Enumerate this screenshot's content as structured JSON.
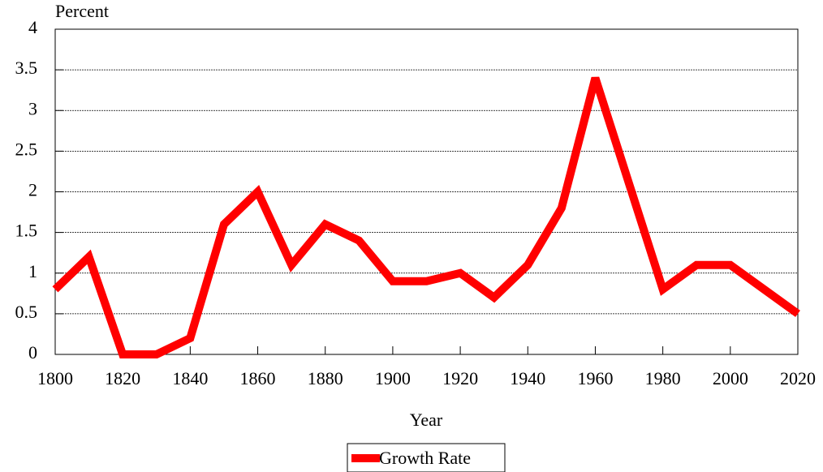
{
  "chart_data": {
    "type": "line",
    "x_label": "Year",
    "y_label": "Percent",
    "x": [
      1800,
      1810,
      1820,
      1830,
      1840,
      1850,
      1860,
      1870,
      1880,
      1890,
      1900,
      1910,
      1920,
      1930,
      1940,
      1950,
      1960,
      1970,
      1980,
      1990,
      2000,
      2010,
      2020
    ],
    "series": [
      {
        "name": "Growth Rate",
        "color": "#ff0000",
        "values": [
          0.8,
          1.2,
          0,
          0,
          0.2,
          1.6,
          2.0,
          1.1,
          1.6,
          1.4,
          0.9,
          0.9,
          1.0,
          0.7,
          1.1,
          1.8,
          3.4,
          2.1,
          0.8,
          1.1,
          1.1,
          0.8,
          0.5
        ]
      }
    ],
    "xlim": [
      1800,
      2020
    ],
    "xticks": [
      1800,
      1820,
      1840,
      1860,
      1880,
      1900,
      1920,
      1940,
      1960,
      1980,
      2000,
      2020
    ],
    "ylim": [
      0,
      4
    ],
    "yticks": [
      0,
      0.5,
      1,
      1.5,
      2,
      2.5,
      3,
      3.5,
      4
    ],
    "grid": true,
    "legend": "bottom"
  }
}
